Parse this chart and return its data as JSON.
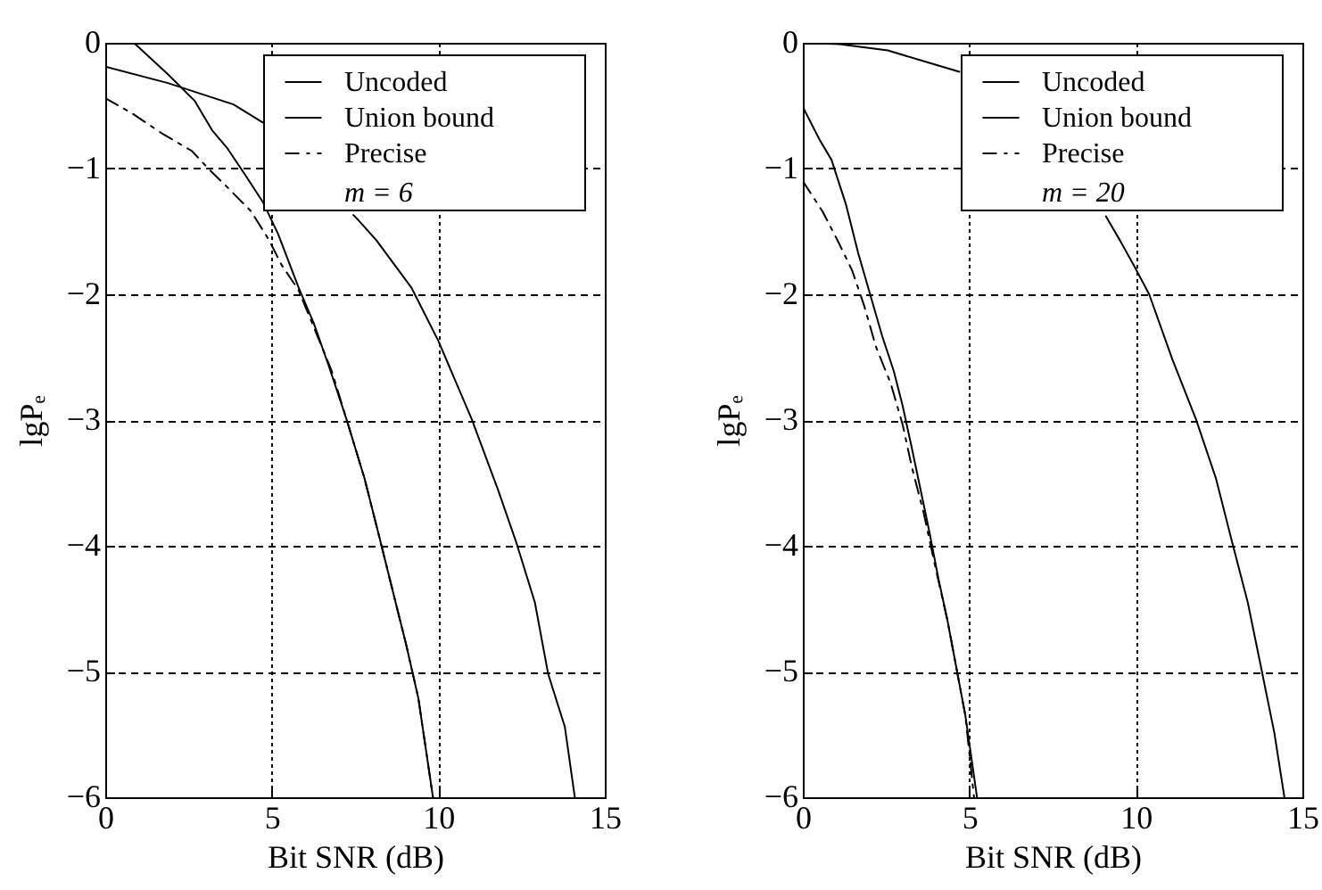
{
  "chart_data": [
    {
      "type": "line",
      "xlabel": "Bit SNR (dB)",
      "ylabel": "lgPₑ",
      "xlim": [
        0,
        15
      ],
      "ylim": [
        -6,
        0
      ],
      "xticks": [
        0,
        5,
        10,
        15
      ],
      "yticks": [
        0,
        -1,
        -2,
        -3,
        -4,
        -5,
        -6
      ],
      "grid": true,
      "legend": "top right",
      "annotations": [
        "m = 6"
      ],
      "series": [
        {
          "name": "Uncoded",
          "color": "#000000",
          "line_style": "solid",
          "x": [
            0,
            1.88,
            3.85,
            4.83,
            6,
            7.45,
            7.6,
            8.14,
            9.2,
            10.0,
            11.0,
            11.8,
            12.35,
            12.9,
            13.3,
            13.8,
            14.1
          ],
          "values": [
            -0.19,
            -0.32,
            -0.49,
            -0.65,
            null,
            -1.37,
            -1.41,
            -1.57,
            -1.95,
            -2.37,
            -2.99,
            -3.56,
            -3.98,
            -4.45,
            -5.02,
            -5.44,
            -6
          ]
        },
        {
          "name": "Union bound",
          "color": "#000000",
          "line_style": "solid",
          "x": [
            0.86,
            1.88,
            2.68,
            3.22,
            3.67,
            4.2,
            4.74,
            5.19,
            5.81,
            6.26,
            6.7,
            7.24,
            7.78,
            8.23,
            8.68,
            9.03,
            9.4,
            9.84
          ],
          "values": [
            0,
            -0.25,
            -0.46,
            -0.7,
            -0.84,
            -1.05,
            -1.27,
            -1.52,
            -1.95,
            -2.23,
            -2.56,
            -2.99,
            -3.46,
            -3.93,
            -4.41,
            -4.78,
            -5.21,
            -6
          ]
        },
        {
          "name": "Precise",
          "color": "#000000",
          "line_style": "dashed",
          "x": [
            0,
            0.8,
            1.7,
            2.6,
            3.13,
            3.67,
            4.38,
            4.92,
            5.28,
            5.81,
            6.26,
            6.8,
            7.24,
            7.78,
            8.23,
            8.68,
            9.03,
            9.4,
            9.84
          ],
          "values": [
            -0.44,
            -0.56,
            -0.72,
            -0.86,
            -1.01,
            -1.15,
            -1.34,
            -1.57,
            -1.76,
            -1.97,
            -2.26,
            -2.61,
            -2.99,
            -3.46,
            -3.93,
            -4.41,
            -4.78,
            -5.21,
            -6
          ]
        }
      ]
    },
    {
      "type": "line",
      "xlabel": "Bit SNR (dB)",
      "ylabel": "lgPₑ",
      "xlim": [
        0,
        15
      ],
      "ylim": [
        -6,
        0
      ],
      "xticks": [
        0,
        5,
        10,
        15
      ],
      "yticks": [
        0,
        -1,
        -2,
        -3,
        -4,
        -5,
        -6
      ],
      "grid": true,
      "legend": "top right",
      "annotations": [
        "m = 20"
      ],
      "series": [
        {
          "name": "Uncoded",
          "color": "#000000",
          "line_style": "solid",
          "x": [
            0,
            1.1,
            2.55,
            3.8,
            4.7,
            7,
            9.1,
            9.52,
            9.96,
            10.4,
            11.1,
            11.8,
            12.4,
            12.9,
            13.36,
            13.8,
            14.16,
            14.46
          ],
          "values": [
            0,
            -0.01,
            -0.06,
            -0.16,
            -0.23,
            null,
            -1.38,
            -1.57,
            -1.78,
            -2.0,
            -2.52,
            -2.99,
            -3.46,
            -3.98,
            -4.45,
            -5.02,
            -5.49,
            -6
          ]
        },
        {
          "name": "Union bound",
          "color": "#000000",
          "line_style": "solid",
          "x": [
            0,
            0.5,
            0.86,
            1.3,
            1.66,
            2.02,
            2.38,
            2.73,
            3.0,
            3.27,
            3.54,
            3.8,
            4.07,
            4.34,
            4.61,
            4.88,
            5.23
          ],
          "values": [
            -0.51,
            -0.77,
            -0.93,
            -1.29,
            -1.67,
            -2.0,
            -2.33,
            -2.61,
            -2.89,
            -3.22,
            -3.56,
            -3.89,
            -4.26,
            -4.59,
            -4.97,
            -5.35,
            -6
          ]
        },
        {
          "name": "Precise",
          "color": "#000000",
          "line_style": "dashed",
          "x": [
            0,
            0.59,
            1.04,
            1.48,
            1.84,
            2.2,
            2.64,
            3.0,
            3.27,
            3.63,
            3.98,
            4.34,
            4.61,
            4.88,
            5.14
          ],
          "values": [
            -1.1,
            -1.34,
            -1.57,
            -1.81,
            -2.09,
            -2.42,
            -2.71,
            -3.04,
            -3.37,
            -3.74,
            -4.17,
            -4.59,
            -4.97,
            -5.35,
            -6
          ]
        }
      ]
    }
  ]
}
